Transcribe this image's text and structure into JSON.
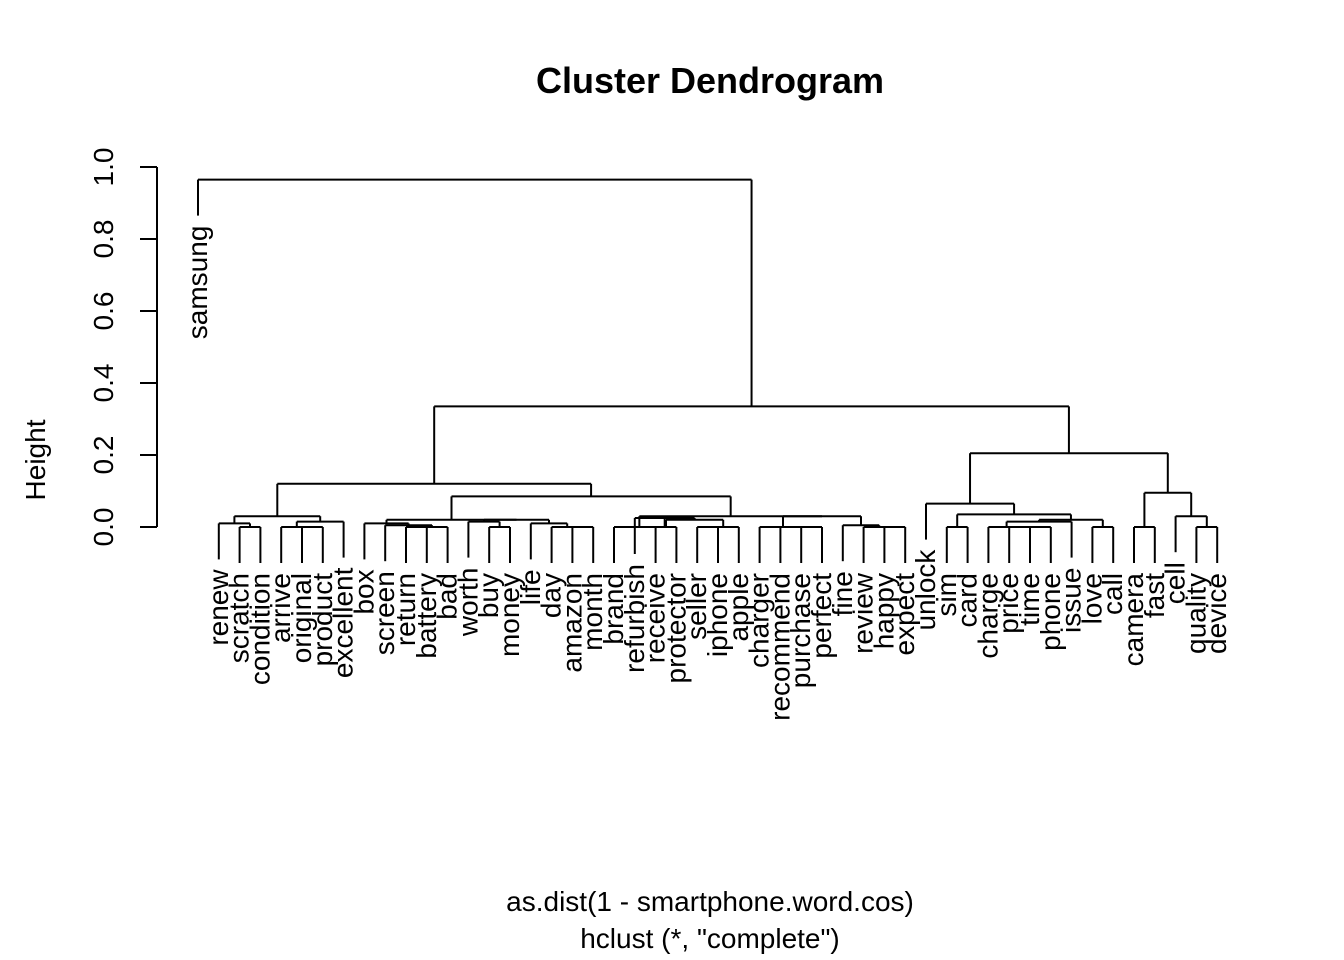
{
  "title": "Cluster Dendrogram",
  "y_axis_label": "Height",
  "x_axis_label": "as.dist(1 - smartphone.word.cos)",
  "subtitle": "hclust (*, \"complete\")",
  "chart_data": {
    "type": "dendrogram",
    "title": "Cluster Dendrogram",
    "ylabel": "Height",
    "xlabel": "as.dist(1 - smartphone.word.cos)",
    "sub": "hclust (*, \"complete\")",
    "ylim": [
      0,
      1.0
    ],
    "y_ticks": [
      "0.0",
      "0.2",
      "0.4",
      "0.6",
      "0.8",
      "1.0"
    ],
    "leaf_order": [
      "samsung",
      "renew",
      "scratch",
      "condition",
      "arrive",
      "original",
      "product",
      "excellent",
      "box",
      "screen",
      "return",
      "battery",
      "bad",
      "worth",
      "buy",
      "money",
      "life",
      "day",
      "amazon",
      "month",
      "brand",
      "refurbish",
      "receive",
      "protector",
      "seller",
      "iphone",
      "apple",
      "charger",
      "recommend",
      "purchase",
      "perfect",
      "fine",
      "review",
      "happy",
      "expect",
      "unlock",
      "sim",
      "card",
      "charge",
      "price",
      "time",
      "phone",
      "issue",
      "love",
      "call",
      "camera",
      "fast",
      "cell",
      "quality",
      "device"
    ],
    "merges": [
      {
        "left": "scratch",
        "right": "condition",
        "height": 0.0
      },
      {
        "left": "renew",
        "right": "scratch+condition",
        "height": 0.01
      },
      {
        "left": "original",
        "right": "product",
        "height": 0.0
      },
      {
        "left": "arrive",
        "right": "original+product",
        "height": 0.0
      },
      {
        "left": "arrive+original+product",
        "right": "excellent",
        "height": 0.015
      },
      {
        "left": "renew+scratch+condition",
        "right": "arrive+original+product+excellent",
        "height": 0.03
      },
      {
        "left": "return",
        "right": "battery",
        "height": 0.0
      },
      {
        "left": "return+battery",
        "right": "bad",
        "height": 0.0
      },
      {
        "left": "screen",
        "right": "return+battery+bad",
        "height": 0.005
      },
      {
        "left": "box",
        "right": "screen+return+battery+bad",
        "height": 0.01
      },
      {
        "left": "buy",
        "right": "money",
        "height": 0.0
      },
      {
        "left": "worth",
        "right": "buy+money",
        "height": 0.015
      },
      {
        "left": "amazon",
        "right": "month",
        "height": 0.0
      },
      {
        "left": "day",
        "right": "amazon+month",
        "height": 0.0
      },
      {
        "left": "life",
        "right": "day+amazon+month",
        "height": 0.01
      },
      {
        "left": "worth+buy+money",
        "right": "life+day+amazon+month",
        "height": 0.02
      },
      {
        "left": "box+screen+return+battery+bad",
        "right": "worth+buy+money+life+day+amazon+month",
        "height": 0.02
      },
      {
        "left": "receive",
        "right": "protector",
        "height": 0.0
      },
      {
        "left": "seller",
        "right": "iphone",
        "height": 0.0
      },
      {
        "left": "seller+iphone",
        "right": "apple",
        "height": 0.0
      },
      {
        "left": "receive+protector",
        "right": "seller+iphone+apple",
        "height": 0.02
      },
      {
        "left": "refurbish",
        "right": "receive+protector+seller+iphone+apple",
        "height": 0.025
      },
      {
        "left": "brand",
        "right": "refurbish+receive+protector+seller+iphone+apple",
        "height": 0.0
      },
      {
        "left": "recommend",
        "right": "purchase",
        "height": 0.0
      },
      {
        "left": "recommend+purchase",
        "right": "perfect",
        "height": 0.0
      },
      {
        "left": "charger",
        "right": "recommend+purchase+perfect",
        "height": 0.0
      },
      {
        "left": "happy",
        "right": "expect",
        "height": 0.0
      },
      {
        "left": "review",
        "right": "happy+expect",
        "height": 0.0
      },
      {
        "left": "fine",
        "right": "review+happy+expect",
        "height": 0.005
      },
      {
        "left": "charger+recommend+purchase+perfect",
        "right": "fine+review+happy+expect",
        "height": 0.03
      },
      {
        "left": "brand+refurbish+receive+protector+seller+iphone+apple",
        "right": "charger+recommend+purchase+perfect+fine+review+happy+expect",
        "height": 0.03
      },
      {
        "left": "box+...+month",
        "right": "brand+...+expect",
        "height": 0.085
      },
      {
        "left": "renew+...+excellent",
        "right": "box+...+expect",
        "height": 0.12
      },
      {
        "left": "time",
        "right": "phone",
        "height": 0.0
      },
      {
        "left": "price",
        "right": "time+phone",
        "height": 0.0
      },
      {
        "left": "charge",
        "right": "price+time+phone",
        "height": 0.0
      },
      {
        "left": "charge+price+time+phone",
        "right": "issue",
        "height": 0.015
      },
      {
        "left": "love",
        "right": "call",
        "height": 0.0
      },
      {
        "left": "charge+price+time+phone+issue",
        "right": "love+call",
        "height": 0.02
      },
      {
        "left": "sim",
        "right": "card",
        "height": 0.0
      },
      {
        "left": "sim+card",
        "right": "charge+price+time+phone+issue+love+call",
        "height": 0.035
      },
      {
        "left": "unlock",
        "right": "sim+...+call",
        "height": 0.065
      },
      {
        "left": "camera",
        "right": "fast",
        "height": 0.0
      },
      {
        "left": "quality",
        "right": "device",
        "height": 0.0
      },
      {
        "left": "cell",
        "right": "quality+device",
        "height": 0.03
      },
      {
        "left": "camera+fast",
        "right": "cell+quality+device",
        "height": 0.095
      },
      {
        "left": "unlock+...+call",
        "right": "camera+...+device",
        "height": 0.205
      },
      {
        "left": "renew+...+expect",
        "right": "unlock+...+device",
        "height": 0.335
      },
      {
        "left": "samsung",
        "right": "renew+...+device",
        "height": 0.965
      }
    ]
  }
}
